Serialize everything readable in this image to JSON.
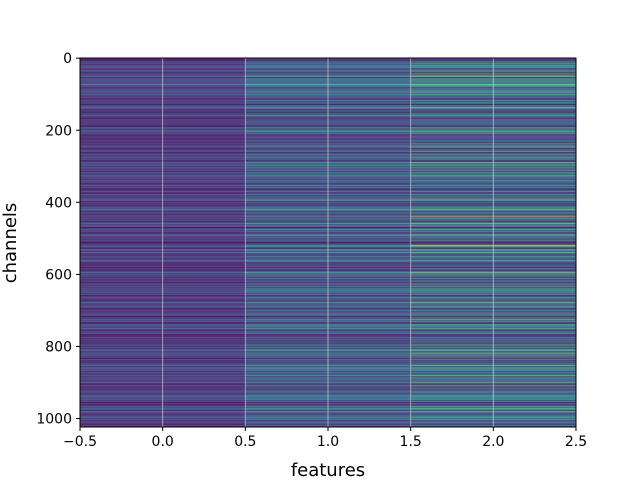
{
  "chart_data": {
    "type": "heatmap",
    "title": "",
    "xlabel": "features",
    "ylabel": "channels",
    "xlim": [
      -0.5,
      2.5
    ],
    "ylim": [
      1023.5,
      -0.5
    ],
    "x_ticks": [
      -0.5,
      0.0,
      0.5,
      1.0,
      1.5,
      2.0,
      2.5
    ],
    "x_tick_labels": [
      "−0.5",
      "0.0",
      "0.5",
      "1.0",
      "1.5",
      "2.0",
      "2.5"
    ],
    "y_ticks": [
      0,
      200,
      400,
      600,
      800,
      1000
    ],
    "y_tick_labels": [
      "0",
      "200",
      "400",
      "600",
      "800",
      "1000"
    ],
    "columns": [
      0,
      1,
      2
    ],
    "n_rows": 1024,
    "colormap": "viridis",
    "value_range": [
      0,
      1
    ],
    "grid": true,
    "noise_seed": 17,
    "column_ranges": [
      {
        "low": 0.0,
        "high": 0.38
      },
      {
        "low": 0.02,
        "high": 0.62
      },
      {
        "low": 0.02,
        "high": 0.78
      }
    ],
    "highlight_rows": [
      {
        "row": 20,
        "values": [
          0.12,
          0.35,
          0.55
        ]
      },
      {
        "row": 75,
        "values": [
          0.2,
          0.45,
          0.62
        ]
      },
      {
        "row": 160,
        "values": [
          0.28,
          0.5,
          0.55
        ]
      },
      {
        "row": 200,
        "values": [
          0.25,
          0.45,
          0.5
        ]
      },
      {
        "row": 240,
        "values": [
          0.05,
          0.15,
          0.2
        ]
      },
      {
        "row": 290,
        "values": [
          0.22,
          0.48,
          0.52
        ]
      },
      {
        "row": 320,
        "values": [
          0.1,
          0.3,
          0.35
        ]
      },
      {
        "row": 360,
        "values": [
          0.2,
          0.42,
          0.45
        ]
      },
      {
        "row": 395,
        "values": [
          0.22,
          0.5,
          0.55
        ]
      },
      {
        "row": 440,
        "values": [
          0.28,
          0.6,
          0.85
        ]
      },
      {
        "row": 475,
        "values": [
          0.2,
          0.5,
          0.55
        ]
      },
      {
        "row": 520,
        "values": [
          0.18,
          0.55,
          0.9
        ]
      },
      {
        "row": 560,
        "values": [
          0.35,
          0.55,
          0.6
        ]
      },
      {
        "row": 580,
        "values": [
          0.02,
          0.08,
          0.1
        ]
      },
      {
        "row": 640,
        "values": [
          0.2,
          0.45,
          0.5
        ]
      },
      {
        "row": 700,
        "values": [
          0.15,
          0.4,
          0.45
        ]
      },
      {
        "row": 745,
        "values": [
          0.3,
          0.55,
          0.58
        ]
      },
      {
        "row": 790,
        "values": [
          0.22,
          0.45,
          0.5
        ]
      },
      {
        "row": 840,
        "values": [
          0.15,
          0.4,
          0.42
        ]
      },
      {
        "row": 880,
        "values": [
          0.2,
          0.45,
          0.6
        ]
      },
      {
        "row": 945,
        "values": [
          0.22,
          0.48,
          0.52
        ]
      },
      {
        "row": 990,
        "values": [
          0.25,
          0.5,
          0.55
        ]
      }
    ]
  }
}
